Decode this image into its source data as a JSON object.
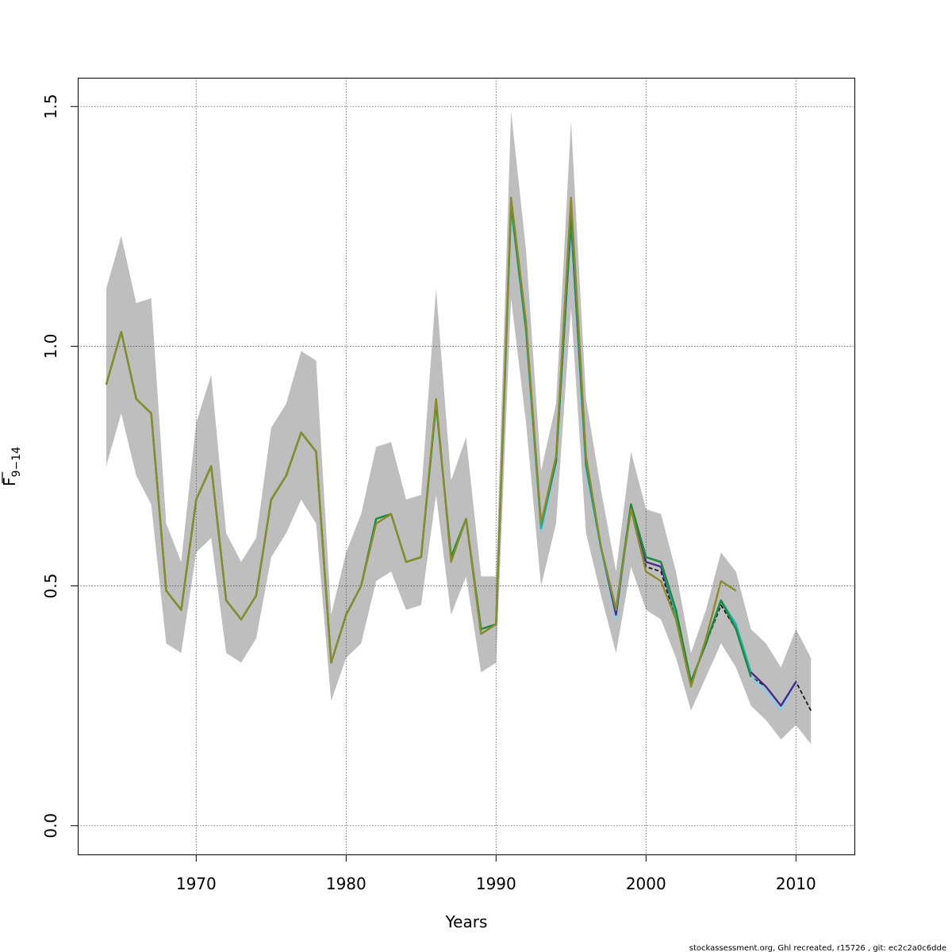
{
  "chart_data": {
    "type": "line",
    "xlabel": "Years",
    "ylabel_main": "F",
    "ylabel_sub": "9−14",
    "xlim": [
      1962.1,
      2013.9
    ],
    "ylim": [
      -0.06,
      1.56
    ],
    "x_ticks": [
      1970,
      1980,
      1990,
      2000,
      2010
    ],
    "x_tick_labels": [
      "1970",
      "1980",
      "1990",
      "2000",
      "2010"
    ],
    "y_ticks": [
      0.0,
      0.5,
      1.0,
      1.5
    ],
    "y_tick_labels": [
      "0.0",
      "0.5",
      "1.0",
      "1.5"
    ],
    "grid": true,
    "band": {
      "x": [
        1964,
        1965,
        1966,
        1967,
        1968,
        1969,
        1970,
        1971,
        1972,
        1973,
        1974,
        1975,
        1976,
        1977,
        1978,
        1979,
        1980,
        1981,
        1982,
        1983,
        1984,
        1985,
        1986,
        1987,
        1988,
        1989,
        1990,
        1991,
        1992,
        1993,
        1994,
        1995,
        1996,
        1997,
        1998,
        1999,
        2000,
        2001,
        2002,
        2003,
        2004,
        2005,
        2006,
        2007,
        2008,
        2009,
        2010,
        2011
      ],
      "upper": [
        1.12,
        1.23,
        1.09,
        1.1,
        0.63,
        0.55,
        0.84,
        0.94,
        0.61,
        0.55,
        0.6,
        0.83,
        0.88,
        0.99,
        0.97,
        0.44,
        0.57,
        0.65,
        0.79,
        0.8,
        0.68,
        0.69,
        1.12,
        0.72,
        0.81,
        0.52,
        0.52,
        1.49,
        1.2,
        0.74,
        0.88,
        1.47,
        0.89,
        0.7,
        0.53,
        0.78,
        0.66,
        0.65,
        0.53,
        0.36,
        0.45,
        0.57,
        0.53,
        0.41,
        0.38,
        0.33,
        0.41,
        0.35
      ],
      "lower": [
        0.75,
        0.86,
        0.73,
        0.67,
        0.38,
        0.36,
        0.57,
        0.6,
        0.36,
        0.34,
        0.39,
        0.56,
        0.61,
        0.68,
        0.63,
        0.26,
        0.35,
        0.38,
        0.51,
        0.53,
        0.45,
        0.46,
        0.69,
        0.44,
        0.52,
        0.32,
        0.34,
        1.1,
        0.84,
        0.5,
        0.63,
        1.08,
        0.61,
        0.48,
        0.36,
        0.54,
        0.45,
        0.43,
        0.35,
        0.24,
        0.31,
        0.38,
        0.33,
        0.25,
        0.22,
        0.18,
        0.21,
        0.17
      ]
    },
    "series": [
      {
        "color": "#1a1a1a",
        "dashed": true,
        "x": [
          1993,
          1994,
          1995,
          1996,
          1997,
          1998,
          1999,
          2000,
          2001,
          2002,
          2003,
          2004,
          2005,
          2006,
          2007,
          2008,
          2009,
          2010,
          2011
        ],
        "values": [
          0.61,
          0.76,
          1.25,
          0.74,
          0.58,
          0.44,
          0.66,
          0.54,
          0.53,
          0.43,
          0.3,
          0.38,
          0.46,
          0.41,
          0.31,
          0.29,
          0.25,
          0.3,
          0.24
        ]
      },
      {
        "color": "#87ceeb",
        "dashed": false,
        "x": [
          1993,
          1994,
          1995,
          1996,
          1997,
          1998,
          1999,
          2000,
          2001,
          2002,
          2003,
          2004,
          2005,
          2006,
          2007,
          2008,
          2009,
          2010
        ],
        "values": [
          0.61,
          0.75,
          1.25,
          0.74,
          0.57,
          0.43,
          0.66,
          0.55,
          0.54,
          0.44,
          0.3,
          0.38,
          0.47,
          0.42,
          0.31,
          0.28,
          0.24,
          0.3
        ]
      },
      {
        "color": "#4b2a8a",
        "dashed": false,
        "x": [
          1993,
          1994,
          1995,
          1996,
          1997,
          1998,
          1999,
          2000,
          2001,
          2002,
          2003,
          2004,
          2005,
          2006,
          2007,
          2008,
          2009,
          2010
        ],
        "values": [
          0.62,
          0.76,
          1.26,
          0.75,
          0.58,
          0.44,
          0.67,
          0.55,
          0.54,
          0.44,
          0.3,
          0.38,
          0.47,
          0.41,
          0.32,
          0.29,
          0.25,
          0.3
        ]
      },
      {
        "color": "#20b2aa",
        "dashed": false,
        "x": [
          1964,
          1965,
          1966,
          1967,
          1968,
          1969,
          1970,
          1971,
          1972,
          1973,
          1974,
          1975,
          1976,
          1977,
          1978,
          1979,
          1980,
          1981,
          1982,
          1983,
          1984,
          1985,
          1986,
          1987,
          1988,
          1989,
          1990,
          1991,
          1992,
          1993,
          1994,
          1995,
          1996,
          1997,
          1998,
          1999,
          2000,
          2001,
          2002,
          2003,
          2004,
          2005,
          2006,
          2007
        ],
        "values": [
          0.92,
          1.03,
          0.89,
          0.86,
          0.49,
          0.45,
          0.68,
          0.75,
          0.47,
          0.43,
          0.48,
          0.68,
          0.73,
          0.82,
          0.78,
          0.34,
          0.44,
          0.5,
          0.64,
          0.65,
          0.55,
          0.56,
          0.88,
          0.56,
          0.64,
          0.4,
          0.42,
          1.29,
          1.03,
          0.62,
          0.76,
          1.27,
          0.75,
          0.58,
          0.45,
          0.67,
          0.56,
          0.55,
          0.44,
          0.3,
          0.38,
          0.47,
          0.42,
          0.32
        ]
      },
      {
        "color": "#1f8a3a",
        "dashed": false,
        "x": [
          1964,
          1965,
          1966,
          1967,
          1968,
          1969,
          1970,
          1971,
          1972,
          1973,
          1974,
          1975,
          1976,
          1977,
          1978,
          1979,
          1980,
          1981,
          1982,
          1983,
          1984,
          1985,
          1986,
          1987,
          1988,
          1989,
          1990,
          1991,
          1992,
          1993,
          1994,
          1995,
          1996,
          1997,
          1998,
          1999,
          2000,
          2001,
          2002,
          2003,
          2004,
          2005,
          2006,
          2007
        ],
        "values": [
          0.92,
          1.03,
          0.89,
          0.86,
          0.49,
          0.45,
          0.68,
          0.75,
          0.47,
          0.43,
          0.48,
          0.68,
          0.73,
          0.82,
          0.78,
          0.34,
          0.44,
          0.5,
          0.64,
          0.65,
          0.55,
          0.56,
          0.88,
          0.56,
          0.64,
          0.41,
          0.42,
          1.3,
          1.04,
          0.63,
          0.76,
          1.28,
          0.76,
          0.58,
          0.45,
          0.67,
          0.56,
          0.55,
          0.45,
          0.3,
          0.38,
          0.47,
          0.41,
          0.31
        ]
      },
      {
        "color": "#8b8b2a",
        "dashed": false,
        "x": [
          1964,
          1965,
          1966,
          1967,
          1968,
          1969,
          1970,
          1971,
          1972,
          1973,
          1974,
          1975,
          1976,
          1977,
          1978,
          1979,
          1980,
          1981,
          1982,
          1983,
          1984,
          1985,
          1986,
          1987,
          1988,
          1989,
          1990,
          1991,
          1992,
          1993,
          1994,
          1995,
          1996,
          1997,
          1998,
          1999,
          2000,
          2001,
          2002,
          2003,
          2004,
          2005,
          2006
        ],
        "values": [
          0.92,
          1.03,
          0.89,
          0.86,
          0.49,
          0.45,
          0.68,
          0.75,
          0.47,
          0.43,
          0.48,
          0.68,
          0.73,
          0.82,
          0.78,
          0.34,
          0.44,
          0.5,
          0.63,
          0.65,
          0.55,
          0.56,
          0.89,
          0.55,
          0.64,
          0.4,
          0.42,
          1.31,
          1.05,
          0.63,
          0.77,
          1.31,
          0.77,
          0.58,
          0.45,
          0.66,
          0.53,
          0.51,
          0.43,
          0.29,
          0.39,
          0.51,
          0.49
        ]
      }
    ]
  },
  "footer": "stockassessment.org, Ghl  recreated, r15726 , git: ec2c2a0c6dde"
}
